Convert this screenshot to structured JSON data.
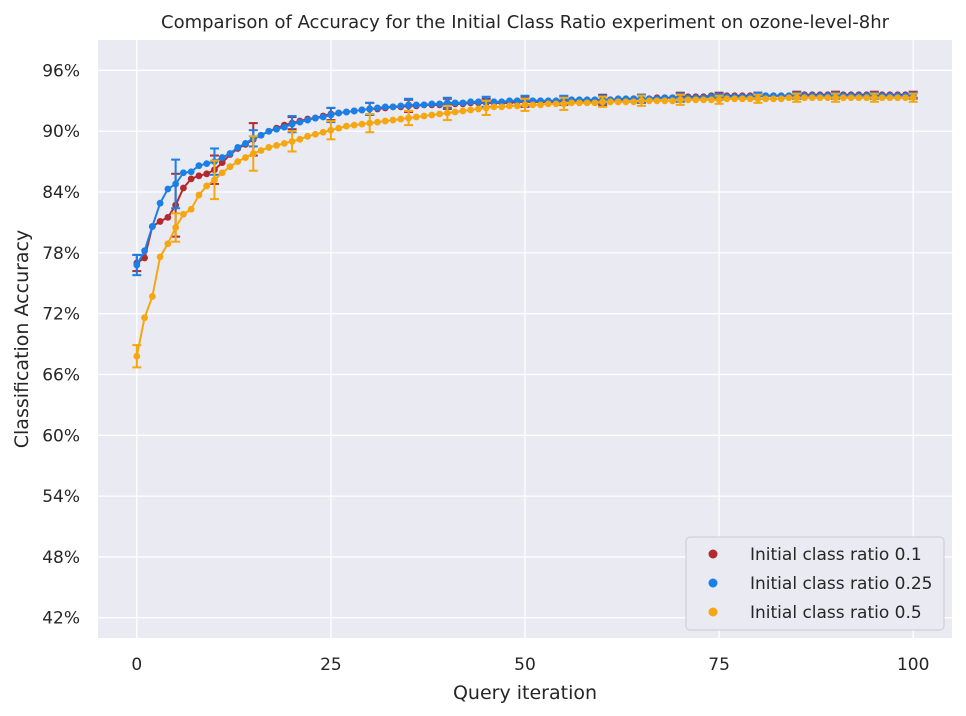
{
  "chart_data": {
    "type": "line",
    "title": "Comparison of Accuracy for the Initial Class Ratio experiment on ozone-level-8hr",
    "xlabel": "Query iteration",
    "ylabel": "Classification Accuracy",
    "xlim": [
      -5,
      105
    ],
    "ylim": [
      0.4,
      0.99
    ],
    "x_ticks": [
      0,
      25,
      50,
      75,
      100
    ],
    "x_tick_labels": [
      "0",
      "25",
      "50",
      "75",
      "100"
    ],
    "y_ticks": [
      0.42,
      0.48,
      0.54,
      0.6,
      0.66,
      0.72,
      0.78,
      0.84,
      0.9,
      0.96
    ],
    "y_tick_labels": [
      "42%",
      "48%",
      "54%",
      "60%",
      "66%",
      "72%",
      "78%",
      "84%",
      "90%",
      "96%"
    ],
    "grid": true,
    "background": "#eaeaf2",
    "legend_position": "bottom-right",
    "legend_labels": [
      "Initial class ratio 0.1",
      "Initial class ratio 0.25",
      "Initial class ratio 0.5"
    ],
    "x": [
      0,
      1,
      2,
      3,
      4,
      5,
      6,
      7,
      8,
      9,
      10,
      11,
      12,
      13,
      14,
      15,
      16,
      17,
      18,
      19,
      20,
      21,
      22,
      23,
      24,
      25,
      26,
      27,
      28,
      29,
      30,
      31,
      32,
      33,
      34,
      35,
      36,
      37,
      38,
      39,
      40,
      41,
      42,
      43,
      44,
      45,
      46,
      47,
      48,
      49,
      50,
      51,
      52,
      53,
      54,
      55,
      56,
      57,
      58,
      59,
      60,
      61,
      62,
      63,
      64,
      65,
      66,
      67,
      68,
      69,
      70,
      71,
      72,
      73,
      74,
      75,
      76,
      77,
      78,
      79,
      80,
      81,
      82,
      83,
      84,
      85,
      86,
      87,
      88,
      89,
      90,
      91,
      92,
      93,
      94,
      95,
      96,
      97,
      98,
      99,
      100
    ],
    "series": [
      {
        "name": "Initial class ratio 0.1",
        "color": "#b22a2e",
        "values": [
          0.77,
          0.775,
          0.806,
          0.811,
          0.815,
          0.827,
          0.844,
          0.853,
          0.856,
          0.858,
          0.862,
          0.869,
          0.877,
          0.883,
          0.887,
          0.892,
          0.896,
          0.9,
          0.903,
          0.906,
          0.908,
          0.91,
          0.912,
          0.913,
          0.915,
          0.917,
          0.918,
          0.919,
          0.92,
          0.921,
          0.922,
          0.922,
          0.923,
          0.924,
          0.924,
          0.925,
          0.925,
          0.926,
          0.926,
          0.926,
          0.927,
          0.927,
          0.927,
          0.928,
          0.928,
          0.928,
          0.928,
          0.928,
          0.928,
          0.929,
          0.929,
          0.929,
          0.929,
          0.929,
          0.929,
          0.93,
          0.93,
          0.93,
          0.93,
          0.93,
          0.931,
          0.931,
          0.931,
          0.931,
          0.932,
          0.932,
          0.932,
          0.933,
          0.933,
          0.933,
          0.934,
          0.934,
          0.934,
          0.934,
          0.935,
          0.935,
          0.935,
          0.935,
          0.935,
          0.935,
          0.935,
          0.935,
          0.935,
          0.935,
          0.935,
          0.936,
          0.936,
          0.936,
          0.936,
          0.936,
          0.936,
          0.936,
          0.936,
          0.936,
          0.936,
          0.936,
          0.936,
          0.936,
          0.936,
          0.936,
          0.936
        ],
        "error_x": [
          0,
          5,
          10,
          15,
          20,
          25,
          30,
          35,
          40,
          45,
          50,
          55,
          60,
          65,
          70,
          75,
          80,
          85,
          90,
          95,
          100
        ],
        "error_values": [
          0.008,
          0.031,
          0.014,
          0.016,
          0.006,
          0.006,
          0.006,
          0.006,
          0.005,
          0.004,
          0.005,
          0.004,
          0.005,
          0.004,
          0.004,
          0.003,
          0.003,
          0.003,
          0.003,
          0.003,
          0.003
        ]
      },
      {
        "name": "Initial class ratio 0.25",
        "color": "#1a80e8",
        "values": [
          0.768,
          0.782,
          0.806,
          0.829,
          0.843,
          0.848,
          0.859,
          0.86,
          0.866,
          0.868,
          0.87,
          0.874,
          0.878,
          0.884,
          0.888,
          0.893,
          0.896,
          0.9,
          0.902,
          0.904,
          0.907,
          0.909,
          0.911,
          0.913,
          0.914,
          0.916,
          0.918,
          0.919,
          0.92,
          0.921,
          0.922,
          0.923,
          0.924,
          0.924,
          0.925,
          0.926,
          0.926,
          0.926,
          0.927,
          0.927,
          0.928,
          0.928,
          0.928,
          0.929,
          0.929,
          0.929,
          0.929,
          0.929,
          0.93,
          0.93,
          0.93,
          0.93,
          0.93,
          0.93,
          0.93,
          0.931,
          0.931,
          0.931,
          0.931,
          0.931,
          0.931,
          0.931,
          0.932,
          0.932,
          0.932,
          0.932,
          0.932,
          0.932,
          0.933,
          0.933,
          0.933,
          0.933,
          0.933,
          0.933,
          0.934,
          0.934,
          0.934,
          0.934,
          0.934,
          0.934,
          0.935,
          0.935,
          0.935,
          0.935,
          0.935,
          0.935,
          0.935,
          0.935,
          0.935,
          0.935,
          0.935,
          0.935,
          0.935,
          0.935,
          0.935,
          0.935,
          0.935,
          0.935,
          0.935,
          0.935,
          0.935
        ],
        "error_x": [
          0,
          5,
          10,
          15,
          20,
          25,
          30,
          35,
          40,
          45,
          50,
          55,
          60,
          65,
          70,
          75,
          80,
          85,
          90,
          95,
          100
        ],
        "error_values": [
          0.01,
          0.024,
          0.013,
          0.008,
          0.008,
          0.007,
          0.006,
          0.006,
          0.005,
          0.005,
          0.005,
          0.004,
          0.004,
          0.004,
          0.004,
          0.003,
          0.003,
          0.003,
          0.003,
          0.003,
          0.003
        ]
      },
      {
        "name": "Initial class ratio 0.5",
        "color": "#f5a711",
        "values": [
          0.678,
          0.716,
          0.737,
          0.776,
          0.789,
          0.805,
          0.818,
          0.823,
          0.837,
          0.846,
          0.852,
          0.859,
          0.865,
          0.87,
          0.874,
          0.878,
          0.881,
          0.884,
          0.886,
          0.888,
          0.89,
          0.892,
          0.895,
          0.897,
          0.899,
          0.901,
          0.903,
          0.905,
          0.906,
          0.907,
          0.908,
          0.909,
          0.91,
          0.911,
          0.912,
          0.913,
          0.914,
          0.915,
          0.916,
          0.917,
          0.918,
          0.919,
          0.92,
          0.921,
          0.922,
          0.923,
          0.924,
          0.924,
          0.925,
          0.925,
          0.926,
          0.926,
          0.926,
          0.927,
          0.927,
          0.927,
          0.928,
          0.928,
          0.928,
          0.928,
          0.929,
          0.929,
          0.929,
          0.929,
          0.929,
          0.93,
          0.93,
          0.93,
          0.93,
          0.93,
          0.931,
          0.931,
          0.931,
          0.931,
          0.931,
          0.931,
          0.932,
          0.932,
          0.932,
          0.932,
          0.932,
          0.932,
          0.932,
          0.932,
          0.933,
          0.933,
          0.933,
          0.933,
          0.933,
          0.933,
          0.933,
          0.933,
          0.933,
          0.933,
          0.933,
          0.933,
          0.933,
          0.933,
          0.933,
          0.933,
          0.933
        ],
        "error_x": [
          0,
          5,
          10,
          15,
          20,
          25,
          30,
          35,
          40,
          45,
          50,
          55,
          60,
          65,
          70,
          75,
          80,
          85,
          90,
          95,
          100
        ],
        "error_values": [
          0.011,
          0.014,
          0.019,
          0.017,
          0.01,
          0.009,
          0.009,
          0.007,
          0.007,
          0.007,
          0.006,
          0.006,
          0.005,
          0.005,
          0.005,
          0.004,
          0.004,
          0.004,
          0.004,
          0.004,
          0.004
        ]
      }
    ]
  }
}
